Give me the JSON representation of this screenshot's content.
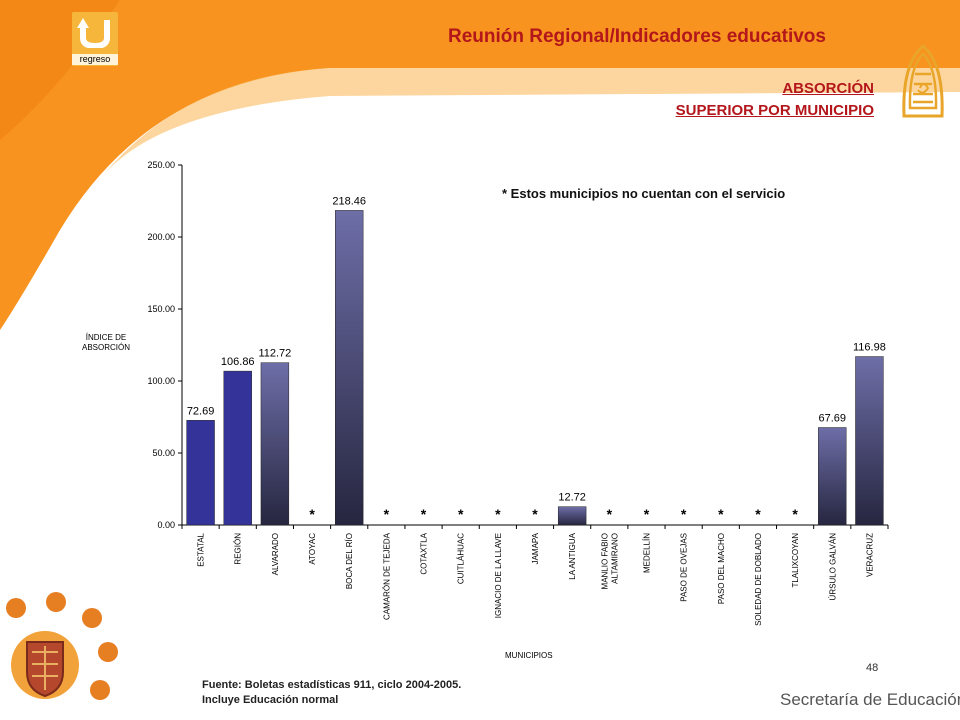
{
  "header": {
    "return_label": "regreso",
    "title_part1": "Reunión Regional",
    "title_part2": "/Indicadores educativos"
  },
  "section": {
    "line1": "ABSORCIÓN",
    "line2": "SUPERIOR POR MUNICIPIO"
  },
  "note": "* Estos municipios no cuentan con el servicio",
  "page_number": "48",
  "source": {
    "line1": "Fuente: Boletas estadísticas 911, ciclo 2004-2005.",
    "line2": "Incluye Educación normal"
  },
  "footer_org": "Secretaría de Educación",
  "colors": {
    "orange": "#f7931e",
    "header_red": "#b3161b",
    "bar_solid": "#33339a",
    "bar_grad_top": "#6e6ea8",
    "bar_grad_bottom": "#262640"
  },
  "icons": [
    "return-arrow-icon",
    "state-emblem-icon",
    "coat-of-arms-icon"
  ],
  "chart_data": {
    "type": "bar",
    "ylabel": "ÍNDICE DE ABSORCIÓN",
    "xlabel": "MUNICIPIOS",
    "ylim": [
      0,
      250
    ],
    "yticks": [
      "0.00",
      "50.00",
      "100.00",
      "150.00",
      "200.00",
      "250.00"
    ],
    "grid": false,
    "categories": [
      "ESTATAL",
      "REGIÓN",
      "ALVARADO",
      "ATOYAC",
      "BOCA DEL RÍO",
      "CAMARÓN DE TEJEDA",
      "COTAXTLA",
      "CUITLÁHUAC",
      "IGNACIO DE LA LLAVE",
      "JAMAPA",
      "LA ANTIGUA",
      "MANLIO FABIO ALTAMIRANO",
      "MEDELLÍN",
      "PASO DE OVEJAS",
      "PASO DEL MACHO",
      "SOLEDAD DE DOBLADO",
      "TLALIXCOYAN",
      "ÚRSULO GALVÁN",
      "VERACRUZ"
    ],
    "values": [
      72.69,
      106.86,
      112.72,
      null,
      218.46,
      null,
      null,
      null,
      null,
      null,
      12.72,
      null,
      null,
      null,
      null,
      null,
      null,
      67.69,
      116.98
    ],
    "value_labels": [
      "72.69",
      "106.86",
      "112.72",
      "*",
      "218.46",
      "*",
      "*",
      "*",
      "*",
      "*",
      "12.72",
      "*",
      "*",
      "*",
      "*",
      "*",
      "*",
      "67.69",
      "116.98"
    ],
    "solid_bars": [
      "ESTATAL",
      "REGIÓN"
    ]
  }
}
